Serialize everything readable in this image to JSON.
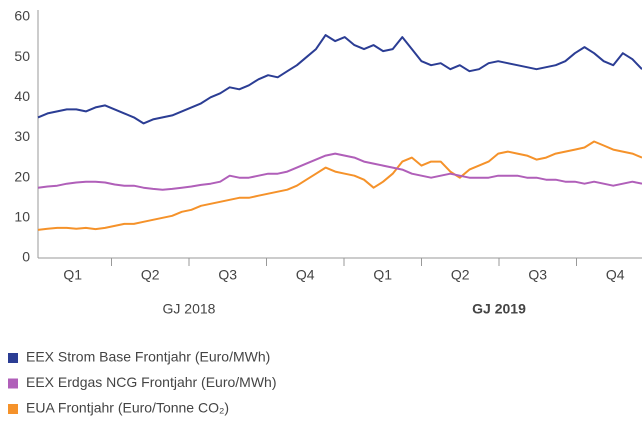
{
  "chart_data": {
    "type": "line",
    "quarters": [
      "Q1",
      "Q2",
      "Q3",
      "Q4",
      "Q1",
      "Q2",
      "Q3",
      "Q4"
    ],
    "years": [
      {
        "label": "GJ 2018",
        "bold": false
      },
      {
        "label": "GJ 2019",
        "bold": true
      }
    ],
    "ylim": [
      0,
      60
    ],
    "yticks": [
      0,
      10,
      20,
      30,
      40,
      50,
      60
    ],
    "series": [
      {
        "name": "EEX Strom Base Frontjahr (Euro/MWh)",
        "color": "#2b3d94",
        "values": [
          35,
          36,
          36.5,
          37,
          37,
          36.5,
          37.5,
          38,
          37,
          36,
          35,
          33.5,
          34.5,
          35,
          35.5,
          36.5,
          37.5,
          38.5,
          40,
          41,
          42.5,
          42,
          43,
          44.5,
          45.5,
          45,
          46.5,
          48,
          50,
          52,
          55.5,
          54,
          55,
          53,
          52,
          53,
          51.5,
          52,
          55,
          52,
          49,
          48,
          48.5,
          47,
          48,
          46.5,
          47,
          48.5,
          49,
          48.5,
          48,
          47.5,
          47,
          47.5,
          48,
          49,
          51,
          52.5,
          51,
          49,
          48,
          51,
          49.5,
          47
        ]
      },
      {
        "name": "EEX Erdgas NCG Frontjahr (Euro/MWh)",
        "color": "#b05fb9",
        "values": [
          17.5,
          17.8,
          18,
          18.5,
          18.8,
          19,
          19,
          18.8,
          18.3,
          18,
          18,
          17.5,
          17.2,
          17,
          17.2,
          17.5,
          17.8,
          18.2,
          18.5,
          19,
          20.5,
          20,
          20,
          20.5,
          21,
          21,
          21.5,
          22.5,
          23.5,
          24.5,
          25.5,
          26,
          25.5,
          25,
          24,
          23.5,
          23,
          22.5,
          22,
          21,
          20.5,
          20,
          20.5,
          21,
          20.5,
          20,
          20,
          20,
          20.5,
          20.5,
          20.5,
          20,
          20,
          19.5,
          19.5,
          19,
          19,
          18.5,
          19,
          18.5,
          18,
          18.5,
          19,
          18.5
        ]
      },
      {
        "name": "EUA Frontjahr (Euro/Tonne CO₂)",
        "color": "#f5922a",
        "values": [
          7,
          7.3,
          7.5,
          7.5,
          7.3,
          7.5,
          7.2,
          7.5,
          8,
          8.5,
          8.5,
          9,
          9.5,
          10,
          10.5,
          11.5,
          12,
          13,
          13.5,
          14,
          14.5,
          15,
          15,
          15.5,
          16,
          16.5,
          17,
          18,
          19.5,
          21,
          22.5,
          21.5,
          21,
          20.5,
          19.5,
          17.5,
          19,
          21,
          24,
          25,
          23,
          24,
          24,
          21.5,
          20,
          22,
          23,
          24,
          26,
          26.5,
          26,
          25.5,
          24.5,
          25,
          26,
          26.5,
          27,
          27.5,
          29,
          28,
          27,
          26.5,
          26,
          25
        ]
      }
    ]
  }
}
